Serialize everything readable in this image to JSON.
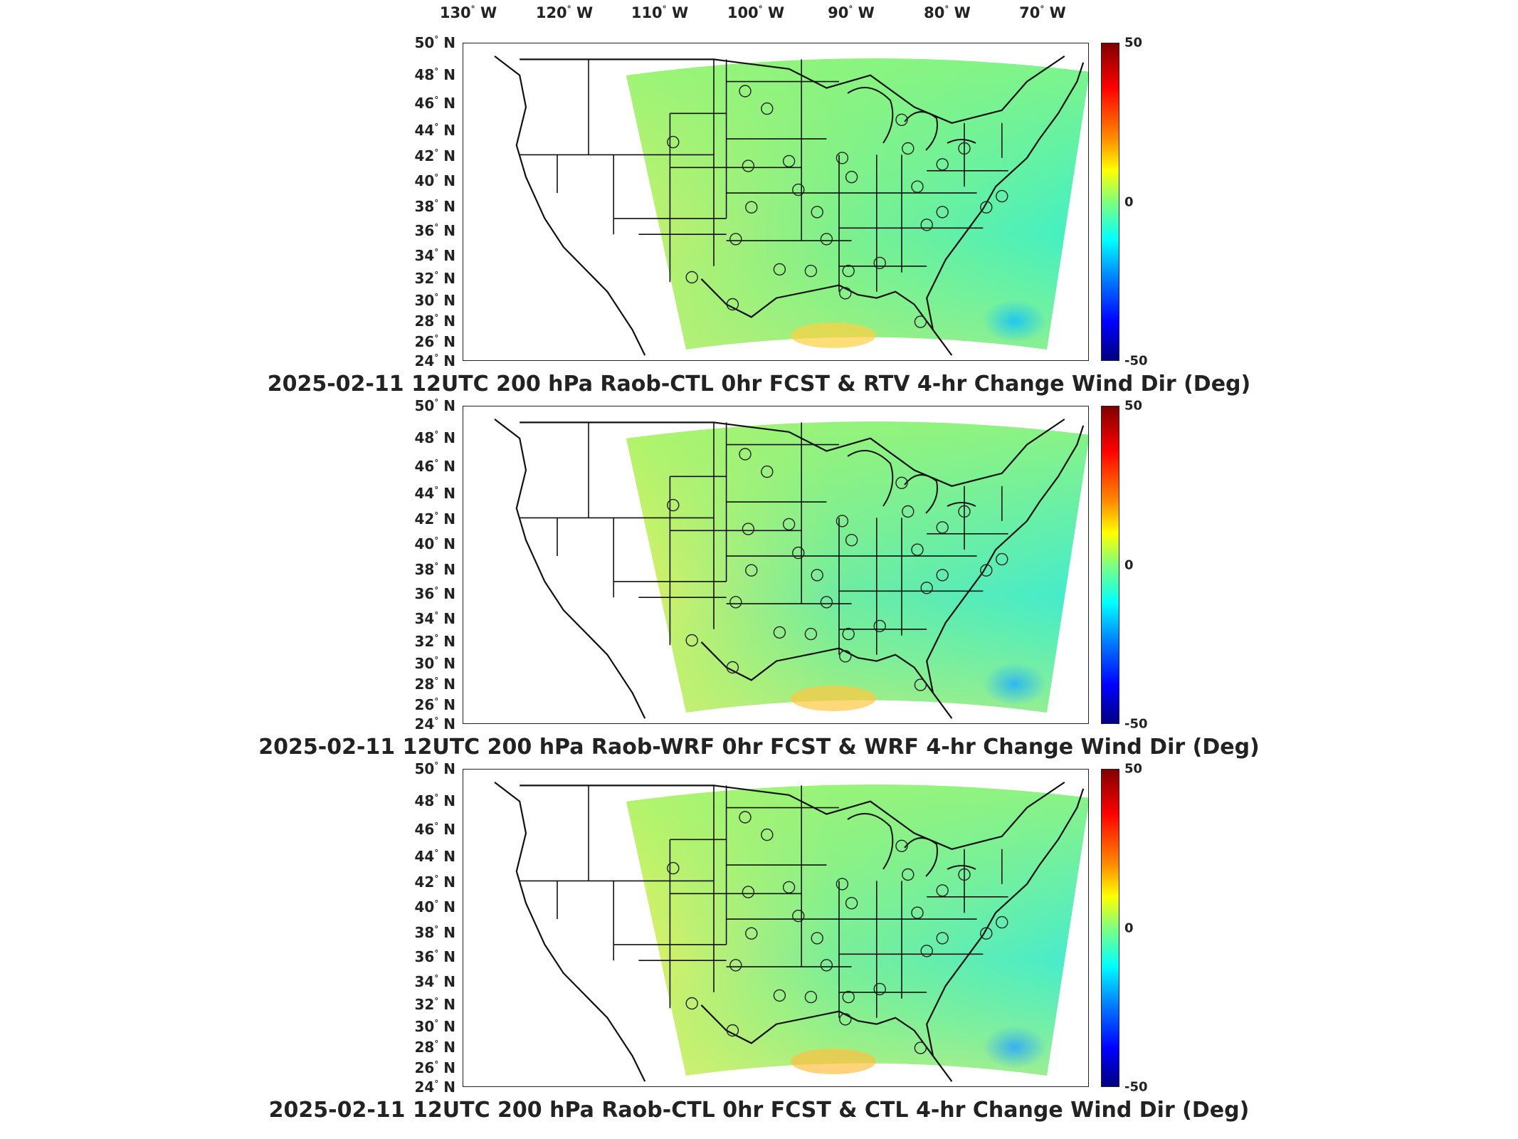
{
  "longitude_labels": [
    {
      "deg": "130",
      "hem": "W"
    },
    {
      "deg": "120",
      "hem": "W"
    },
    {
      "deg": "110",
      "hem": "W"
    },
    {
      "deg": "100",
      "hem": "W"
    },
    {
      "deg": "90",
      "hem": "W"
    },
    {
      "deg": "80",
      "hem": "W"
    },
    {
      "deg": "70",
      "hem": "W"
    }
  ],
  "latitude_labels": [
    {
      "deg": "50",
      "hem": "N"
    },
    {
      "deg": "48",
      "hem": "N"
    },
    {
      "deg": "46",
      "hem": "N"
    },
    {
      "deg": "44",
      "hem": "N"
    },
    {
      "deg": "42",
      "hem": "N"
    },
    {
      "deg": "40",
      "hem": "N"
    },
    {
      "deg": "38",
      "hem": "N"
    },
    {
      "deg": "36",
      "hem": "N"
    },
    {
      "deg": "34",
      "hem": "N"
    },
    {
      "deg": "32",
      "hem": "N"
    },
    {
      "deg": "30",
      "hem": "N"
    },
    {
      "deg": "28",
      "hem": "N"
    },
    {
      "deg": "26",
      "hem": "N"
    },
    {
      "deg": "24",
      "hem": "N"
    }
  ],
  "colorbar": {
    "max_label": "50",
    "mid_label": "0",
    "min_label": "-50",
    "colors": [
      "#800000",
      "#ff0000",
      "#ff8c00",
      "#ffff00",
      "#7fff7f",
      "#00ffff",
      "#0080ff",
      "#0000ff",
      "#000080"
    ]
  },
  "panels": [
    {
      "title": "2025-02-11 12UTC 200 hPa Raob-CTL 0hr FCST & RTV 4-hr Change Wind Dir (Deg)",
      "field_colors": {
        "north": "#8ff57a",
        "center": "#7ff08c",
        "west": "#c8f06a",
        "south": "#b4f078",
        "gulf": "#ffd040",
        "east": "#3ff0c8",
        "sw_ocean": "#20c8f0"
      }
    },
    {
      "title": "2025-02-11 12UTC 200 hPa Raob-WRF 0hr FCST & WRF 4-hr Change Wind Dir (Deg)",
      "field_colors": {
        "north": "#9ff570",
        "center": "#70eca0",
        "west": "#e0f060",
        "south": "#c8f070",
        "gulf": "#ffc840",
        "east": "#40ecd0",
        "sw_ocean": "#30b8f0"
      }
    },
    {
      "title": "2025-02-11 12UTC 200 hPa Raob-CTL 0hr FCST & CTL 4-hr Change Wind Dir (Deg)",
      "field_colors": {
        "north": "#9ff570",
        "center": "#7aee98",
        "west": "#e6f060",
        "south": "#d2f070",
        "gulf": "#ffc040",
        "east": "#44ecd0",
        "sw_ocean": "#38b0f0"
      }
    }
  ]
}
